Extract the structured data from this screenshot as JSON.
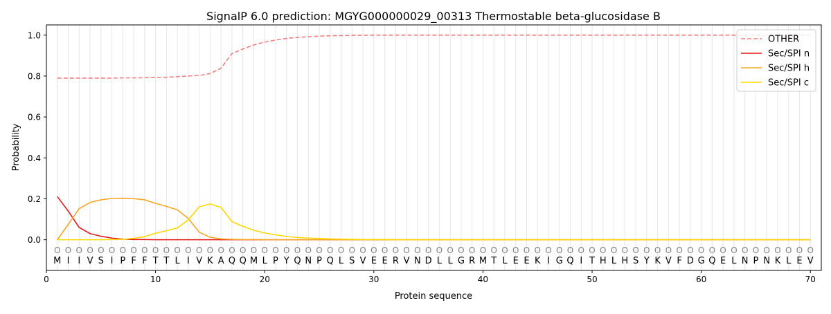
{
  "chart_data": {
    "type": "line",
    "title": "SignalP 6.0 prediction: MGYG000000029_00313 Thermostable beta-glucosidase B",
    "xlabel": "Protein sequence",
    "ylabel": "Probability",
    "xlim": [
      0,
      71
    ],
    "ylim": [
      -0.15,
      1.05
    ],
    "x_ticks": [
      0,
      10,
      20,
      30,
      40,
      50,
      60,
      70
    ],
    "y_ticks": [
      0.0,
      0.2,
      0.4,
      0.6,
      0.8,
      1.0
    ],
    "y_tick_labels": [
      "0.0",
      "0.2",
      "0.4",
      "0.6",
      "0.8",
      "1.0"
    ],
    "grid": "vertical lines at each residue",
    "legend_position": "top-right",
    "sequence": "MIIVSIPFFTTLIVKAQQMLPYQNPQLSVEERVNDLLGRMTLEEKIGQITHLHSYKVFDGQELNPNKLEV",
    "region_marker": "O",
    "series": [
      {
        "name": "OTHER",
        "color": "#f08080",
        "dash": true,
        "values": [
          0.79,
          0.79,
          0.79,
          0.79,
          0.79,
          0.79,
          0.791,
          0.791,
          0.792,
          0.793,
          0.794,
          0.797,
          0.8,
          0.803,
          0.812,
          0.838,
          0.91,
          0.932,
          0.952,
          0.966,
          0.976,
          0.984,
          0.989,
          0.992,
          0.995,
          0.997,
          0.998,
          0.999,
          0.999,
          1,
          1,
          1,
          1,
          1,
          1,
          1,
          1,
          1,
          1,
          1,
          1,
          1,
          1,
          1,
          1,
          1,
          1,
          1,
          1,
          1,
          1,
          1,
          1,
          1,
          1,
          1,
          1,
          1,
          1,
          1,
          1,
          1,
          1,
          1,
          1,
          1,
          1,
          1,
          1,
          1
        ]
      },
      {
        "name": "Sec/SPI n",
        "color": "#e31a1c",
        "dash": false,
        "values": [
          0.211,
          0.14,
          0.06,
          0.03,
          0.017,
          0.008,
          0.003,
          0.001,
          0.001,
          0,
          0,
          0,
          0,
          0,
          0,
          0,
          0,
          0,
          0,
          0,
          0,
          0,
          0,
          0,
          0,
          0,
          0,
          0,
          0,
          0,
          0,
          0,
          0,
          0,
          0,
          0,
          0,
          0,
          0,
          0,
          0,
          0,
          0,
          0,
          0,
          0,
          0,
          0,
          0,
          0,
          0,
          0,
          0,
          0,
          0,
          0,
          0,
          0,
          0,
          0,
          0,
          0,
          0,
          0,
          0,
          0,
          0,
          0,
          0,
          0
        ]
      },
      {
        "name": "Sec/SPI h",
        "color": "#f5a623",
        "dash": false,
        "values": [
          0,
          0.075,
          0.152,
          0.182,
          0.195,
          0.202,
          0.203,
          0.201,
          0.195,
          0.178,
          0.163,
          0.146,
          0.104,
          0.037,
          0.012,
          0.004,
          0.002,
          0.001,
          0.001,
          0,
          0,
          0,
          0,
          0,
          0,
          0,
          0,
          0,
          0,
          0,
          0,
          0,
          0,
          0,
          0,
          0,
          0,
          0,
          0,
          0,
          0,
          0,
          0,
          0,
          0,
          0,
          0,
          0,
          0,
          0,
          0,
          0,
          0,
          0,
          0,
          0,
          0,
          0,
          0,
          0,
          0,
          0,
          0,
          0,
          0,
          0,
          0,
          0,
          0,
          0
        ]
      },
      {
        "name": "Sec/SPI c",
        "color": "#ffd700",
        "dash": false,
        "values": [
          0,
          0,
          0,
          0,
          0,
          0.001,
          0.002,
          0.007,
          0.015,
          0.032,
          0.044,
          0.058,
          0.097,
          0.161,
          0.175,
          0.158,
          0.088,
          0.066,
          0.046,
          0.033,
          0.024,
          0.016,
          0.011,
          0.008,
          0.006,
          0.004,
          0.003,
          0.002,
          0.001,
          0.001,
          0.001,
          0,
          0,
          0,
          0,
          0,
          0,
          0,
          0,
          0,
          0,
          0,
          0,
          0,
          0,
          0,
          0,
          0,
          0,
          0,
          0,
          0,
          0,
          0,
          0,
          0,
          0,
          0,
          0,
          0,
          0,
          0,
          0,
          0,
          0,
          0,
          0,
          0,
          0,
          0
        ]
      }
    ]
  }
}
